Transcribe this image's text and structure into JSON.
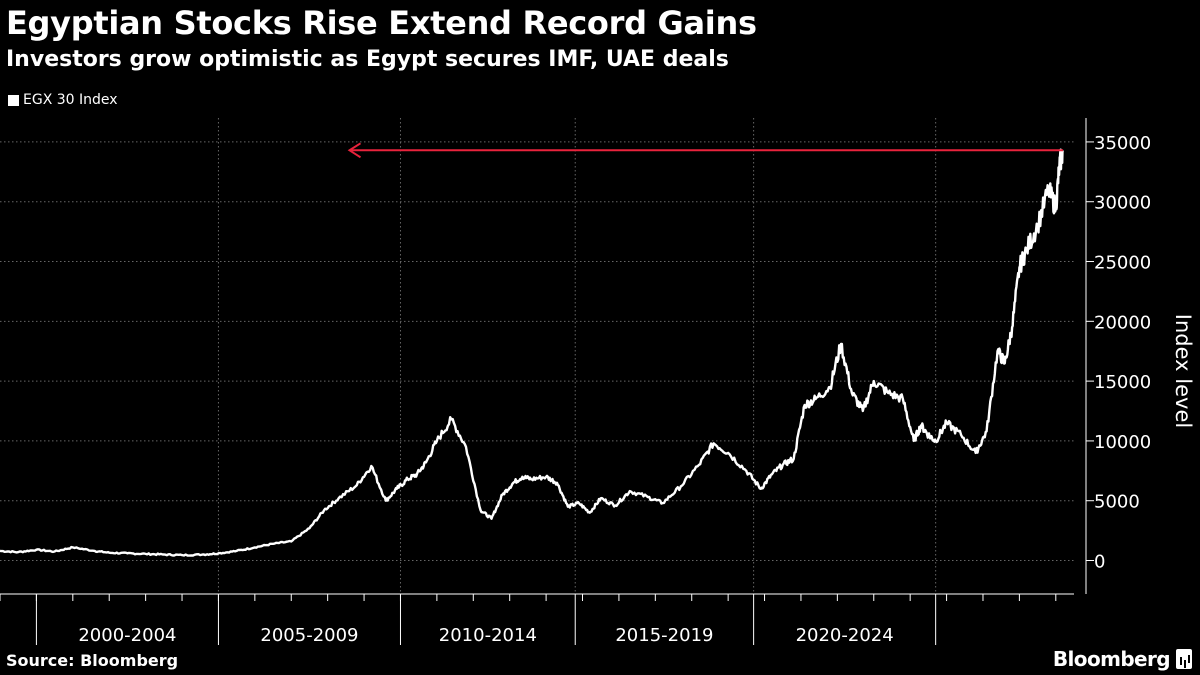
{
  "header": {
    "title": "Egyptian Stocks Rise Extend Record Gains",
    "subtitle": "Investors grow optimistic as Egypt secures IMF, UAE deals"
  },
  "legend": {
    "label": "EGX 30 Index"
  },
  "footer": {
    "source": "Source: Bloomberg",
    "logo_text": "Bloomberg"
  },
  "colors": {
    "background": "#000000",
    "line": "#ffffff",
    "arrow": "#e8233c",
    "grid": "#666666"
  },
  "chart_data": {
    "type": "line",
    "title": "Egyptian Stocks Rise Extend Record Gains",
    "subtitle": "Investors grow optimistic as Egypt secures IMF, UAE deals",
    "xlabel": "",
    "ylabel": "Index level",
    "ylim": [
      -2800,
      37000
    ],
    "xlim": [
      1995.0,
      2024.5
    ],
    "y_ticks": [
      0,
      5000,
      10000,
      15000,
      20000,
      25000,
      30000,
      35000
    ],
    "x_period_labels": [
      "2000-2004",
      "2005-2009",
      "2010-2014",
      "2015-2019",
      "2020-2024"
    ],
    "x_period_boundaries": [
      1996.0,
      2001.0,
      2006.0,
      2010.8,
      2015.7,
      2020.7
    ],
    "grid": true,
    "legend_position": "top-left",
    "annotation": {
      "type": "arrow",
      "y": 34300,
      "x_from": 2024.2,
      "x_to": 2004.6,
      "direction": "left"
    },
    "series": [
      {
        "name": "EGX 30 Index",
        "x": [
          1995.0,
          1995.5,
          1996.0,
          1996.5,
          1997.0,
          1997.6,
          1998.0,
          1998.5,
          1999.0,
          1999.5,
          2000.0,
          2000.6,
          2001.0,
          2001.5,
          2002.0,
          2002.5,
          2003.0,
          2003.5,
          2003.9,
          2004.3,
          2004.8,
          2005.2,
          2005.6,
          2005.9,
          2006.2,
          2006.45,
          2006.7,
          2007.0,
          2007.4,
          2007.8,
          2008.2,
          2008.5,
          2008.8,
          2009.1,
          2009.35,
          2009.6,
          2010.0,
          2010.3,
          2010.6,
          2010.9,
          2011.2,
          2011.5,
          2011.9,
          2012.3,
          2012.8,
          2013.2,
          2013.7,
          2014.2,
          2014.6,
          2015.0,
          2015.5,
          2015.9,
          2016.2,
          2016.5,
          2016.8,
          2017.1,
          2017.4,
          2017.8,
          2018.1,
          2018.4,
          2018.7,
          2019.0,
          2019.4,
          2019.8,
          2020.1,
          2020.3,
          2020.5,
          2020.7,
          2021.0,
          2021.4,
          2021.8,
          2022.1,
          2022.4,
          2022.6,
          2022.8,
          2023.0,
          2023.2,
          2023.5,
          2023.8,
          2024.0,
          2024.1,
          2024.2
        ],
        "values": [
          800,
          700,
          900,
          750,
          1100,
          800,
          650,
          600,
          550,
          500,
          450,
          500,
          600,
          800,
          1100,
          1400,
          1600,
          2700,
          4200,
          5200,
          6300,
          7900,
          5000,
          6000,
          6800,
          7200,
          8200,
          10000,
          11800,
          9500,
          4200,
          3500,
          5500,
          6500,
          7000,
          6800,
          7000,
          6500,
          4500,
          4800,
          4000,
          5200,
          4600,
          5800,
          5300,
          4800,
          6200,
          8000,
          9800,
          9000,
          7500,
          6000,
          7200,
          8000,
          8500,
          13000,
          13500,
          14500,
          18100,
          14000,
          12500,
          15000,
          14000,
          13500,
          10000,
          11300,
          10500,
          10000,
          11500,
          10500,
          9000,
          10800,
          17500,
          16500,
          19500,
          24500,
          26000,
          28000,
          31000,
          29500,
          33000,
          34300
        ]
      }
    ]
  }
}
